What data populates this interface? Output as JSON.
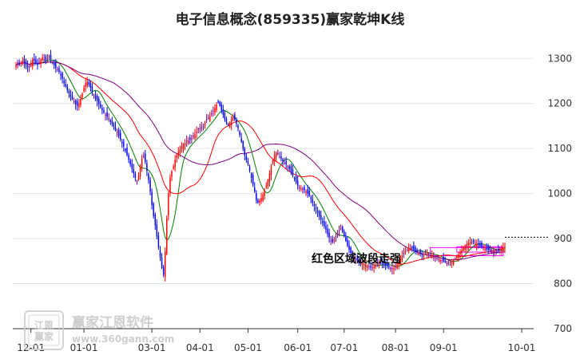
{
  "chart_data": {
    "type": "candlestick",
    "title": "电子信息概念(859335)赢家乾坤K线",
    "x_ticks": [
      "12-01",
      "01-01",
      "03-01",
      "04-01",
      "05-01",
      "06-01",
      "07-01",
      "08-01",
      "09-01",
      "10-01"
    ],
    "y_ticks": [
      700,
      800,
      900,
      1000,
      1100,
      1200,
      1300
    ],
    "ylim": [
      700,
      1320
    ],
    "grid": true,
    "annotation": "红色区域波段走强",
    "reference_line": 903,
    "series": [
      {
        "kind": "candles",
        "color_up": "#ff0000",
        "color_down": "#0000ff",
        "color_neutral": "#800080",
        "close": [
          1285,
          1290,
          1288,
          1292,
          1295,
          1290,
          1285,
          1280,
          1282,
          1290,
          1298,
          1295,
          1290,
          1285,
          1292,
          1298,
          1302,
          1298,
          1295,
          1300,
          1303,
          1297,
          1290,
          1285,
          1280,
          1275,
          1270,
          1262,
          1255,
          1245,
          1238,
          1230,
          1222,
          1215,
          1210,
          1205,
          1198,
          1195,
          1200,
          1210,
          1222,
          1235,
          1245,
          1248,
          1242,
          1235,
          1225,
          1218,
          1210,
          1205,
          1198,
          1192,
          1185,
          1180,
          1175,
          1170,
          1165,
          1160,
          1155,
          1148,
          1140,
          1135,
          1128,
          1120,
          1112,
          1105,
          1095,
          1085,
          1075,
          1065,
          1055,
          1045,
          1035,
          1028,
          1040,
          1060,
          1078,
          1082,
          1070,
          1050,
          1030,
          1005,
          975,
          950,
          930,
          905,
          880,
          858,
          835,
          820,
          870,
          945,
          1000,
          1035,
          1050,
          1060,
          1075,
          1085,
          1092,
          1098,
          1105,
          1110,
          1112,
          1115,
          1118,
          1120,
          1122,
          1128,
          1132,
          1138,
          1142,
          1145,
          1148,
          1150,
          1158,
          1162,
          1168,
          1172,
          1178,
          1182,
          1190,
          1198,
          1202,
          1195,
          1185,
          1175,
          1165,
          1158,
          1152,
          1158,
          1165,
          1170,
          1165,
          1155,
          1145,
          1130,
          1115,
          1100,
          1085,
          1075,
          1065,
          1050,
          1035,
          1020,
          1005,
          985,
          980,
          985,
          990,
          998,
          1008,
          1018,
          1030,
          1045,
          1060,
          1075,
          1085,
          1090,
          1088,
          1082,
          1078,
          1072,
          1068,
          1065,
          1060,
          1055,
          1048,
          1040,
          1032,
          1025,
          1018,
          1014,
          1012,
          1010,
          1008,
          1005,
          1000,
          995,
          988,
          980,
          972,
          965,
          958,
          950,
          942,
          935,
          928,
          920,
          910,
          902,
          895,
          892,
          898,
          905,
          912,
          918,
          922,
          915,
          905,
          895,
          885,
          875,
          868,
          862,
          858,
          855,
          852,
          850,
          848,
          845,
          843,
          842,
          840,
          838,
          836,
          835,
          838,
          842,
          845,
          848,
          846,
          844,
          842,
          840,
          838,
          836,
          834,
          832,
          835,
          838,
          842,
          848,
          855,
          862,
          868,
          872,
          875,
          878,
          880,
          878,
          875,
          872,
          870,
          868,
          866,
          864,
          866,
          868,
          870,
          868,
          865,
          862,
          860,
          858,
          856,
          855,
          853,
          852,
          850,
          848,
          846,
          845,
          846,
          848,
          852,
          856,
          860,
          865,
          870,
          875,
          880,
          885,
          888,
          890,
          892,
          893,
          892,
          890,
          888,
          886,
          884,
          882,
          880,
          878,
          876,
          875,
          874,
          873,
          872,
          871,
          872,
          874,
          876,
          878,
          880,
          882
        ]
      },
      {
        "kind": "line",
        "color": "#008000",
        "period": 10
      },
      {
        "kind": "line",
        "color": "#ff0000",
        "period": 30
      },
      {
        "kind": "line",
        "color": "#800080",
        "period": 60
      }
    ]
  },
  "watermark": {
    "name": "赢家江恩软件",
    "url": "www.360gann.com",
    "seal": "江恩\n赢家"
  }
}
